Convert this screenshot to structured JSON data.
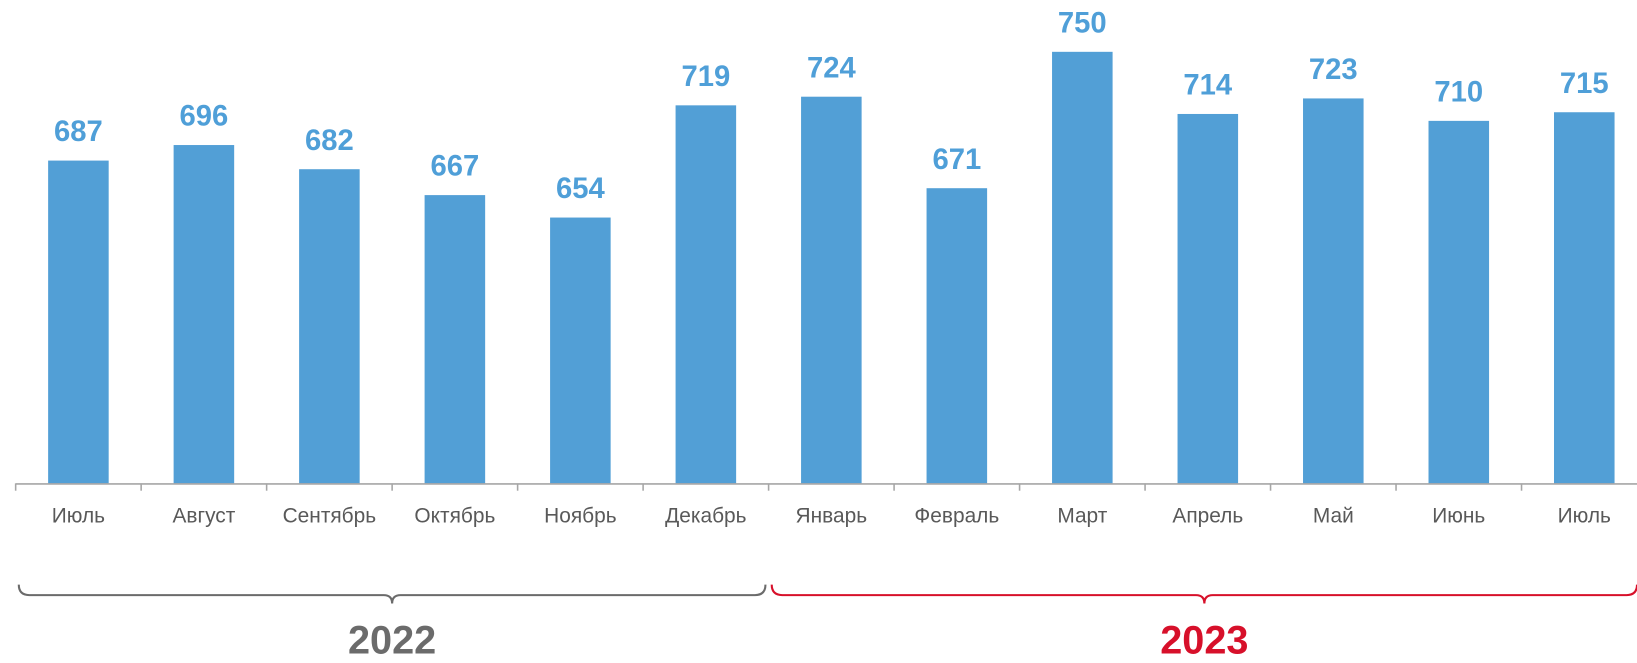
{
  "chart_data": {
    "type": "bar",
    "categories": [
      "Июль",
      "Август",
      "Сентябрь",
      "Октябрь",
      "Ноябрь",
      "Декабрь",
      "Январь",
      "Февраль",
      "Март",
      "Апрель",
      "Май",
      "Июнь",
      "Июль"
    ],
    "values": [
      687,
      696,
      682,
      667,
      654,
      719,
      724,
      671,
      750,
      714,
      723,
      710,
      715
    ],
    "color": "#529fd6",
    "ylim": [
      500,
      780
    ],
    "periods": [
      {
        "label": "2022",
        "color": "#6b6b6b",
        "first": 0,
        "last": 5
      },
      {
        "label": "2023",
        "color": "#d7102a",
        "first": 6,
        "last": 12
      }
    ]
  }
}
